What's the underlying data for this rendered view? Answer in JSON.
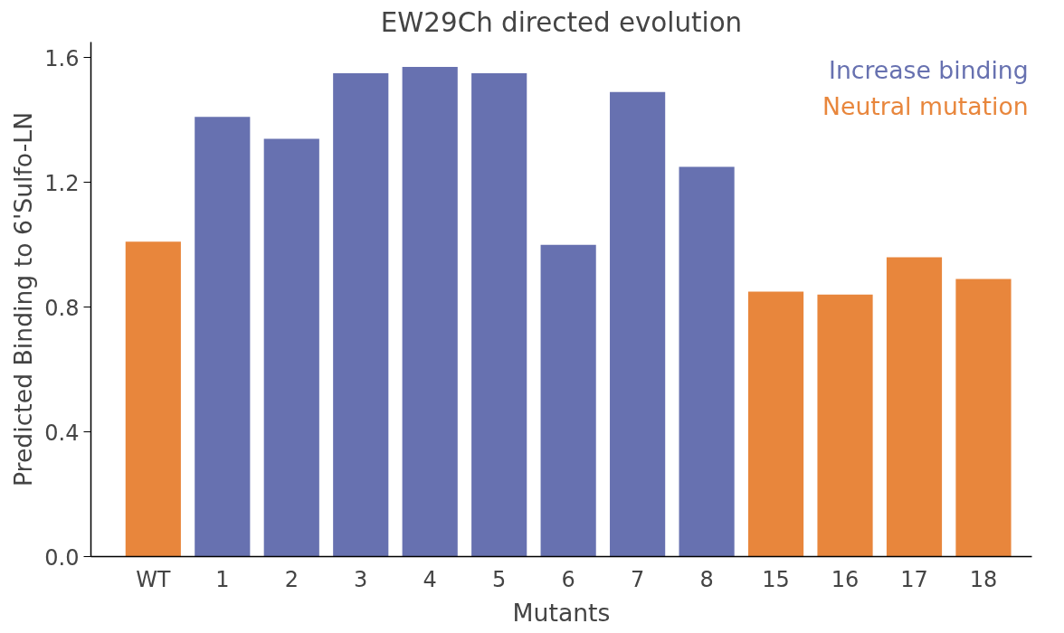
{
  "chart_data": {
    "type": "bar",
    "title": "EW29Ch directed evolution",
    "xlabel": "Mutants",
    "ylabel": "Predicted Binding to 6'Sulfo-LN",
    "categories": [
      "WT",
      "1",
      "2",
      "3",
      "4",
      "5",
      "6",
      "7",
      "8",
      "15",
      "16",
      "17",
      "18"
    ],
    "series": [
      {
        "name": "Increase binding",
        "color": "#6771b0",
        "values": [
          null,
          1.41,
          1.34,
          1.55,
          1.57,
          1.55,
          1.0,
          1.49,
          1.25,
          null,
          null,
          null,
          null
        ]
      },
      {
        "name": "Neutral mutation",
        "color": "#e8863c",
        "values": [
          1.01,
          null,
          null,
          null,
          null,
          null,
          null,
          null,
          null,
          0.85,
          0.84,
          0.96,
          0.89
        ]
      }
    ],
    "ylim": [
      0,
      1.65
    ],
    "yticks": [
      {
        "value": 0,
        "label": "0.0"
      },
      {
        "value": 0.4,
        "label": "0.4"
      },
      {
        "value": 0.8,
        "label": "0.8"
      },
      {
        "value": 1.2,
        "label": "1.2"
      },
      {
        "value": 1.6,
        "label": "1.6"
      }
    ],
    "grid": false
  }
}
